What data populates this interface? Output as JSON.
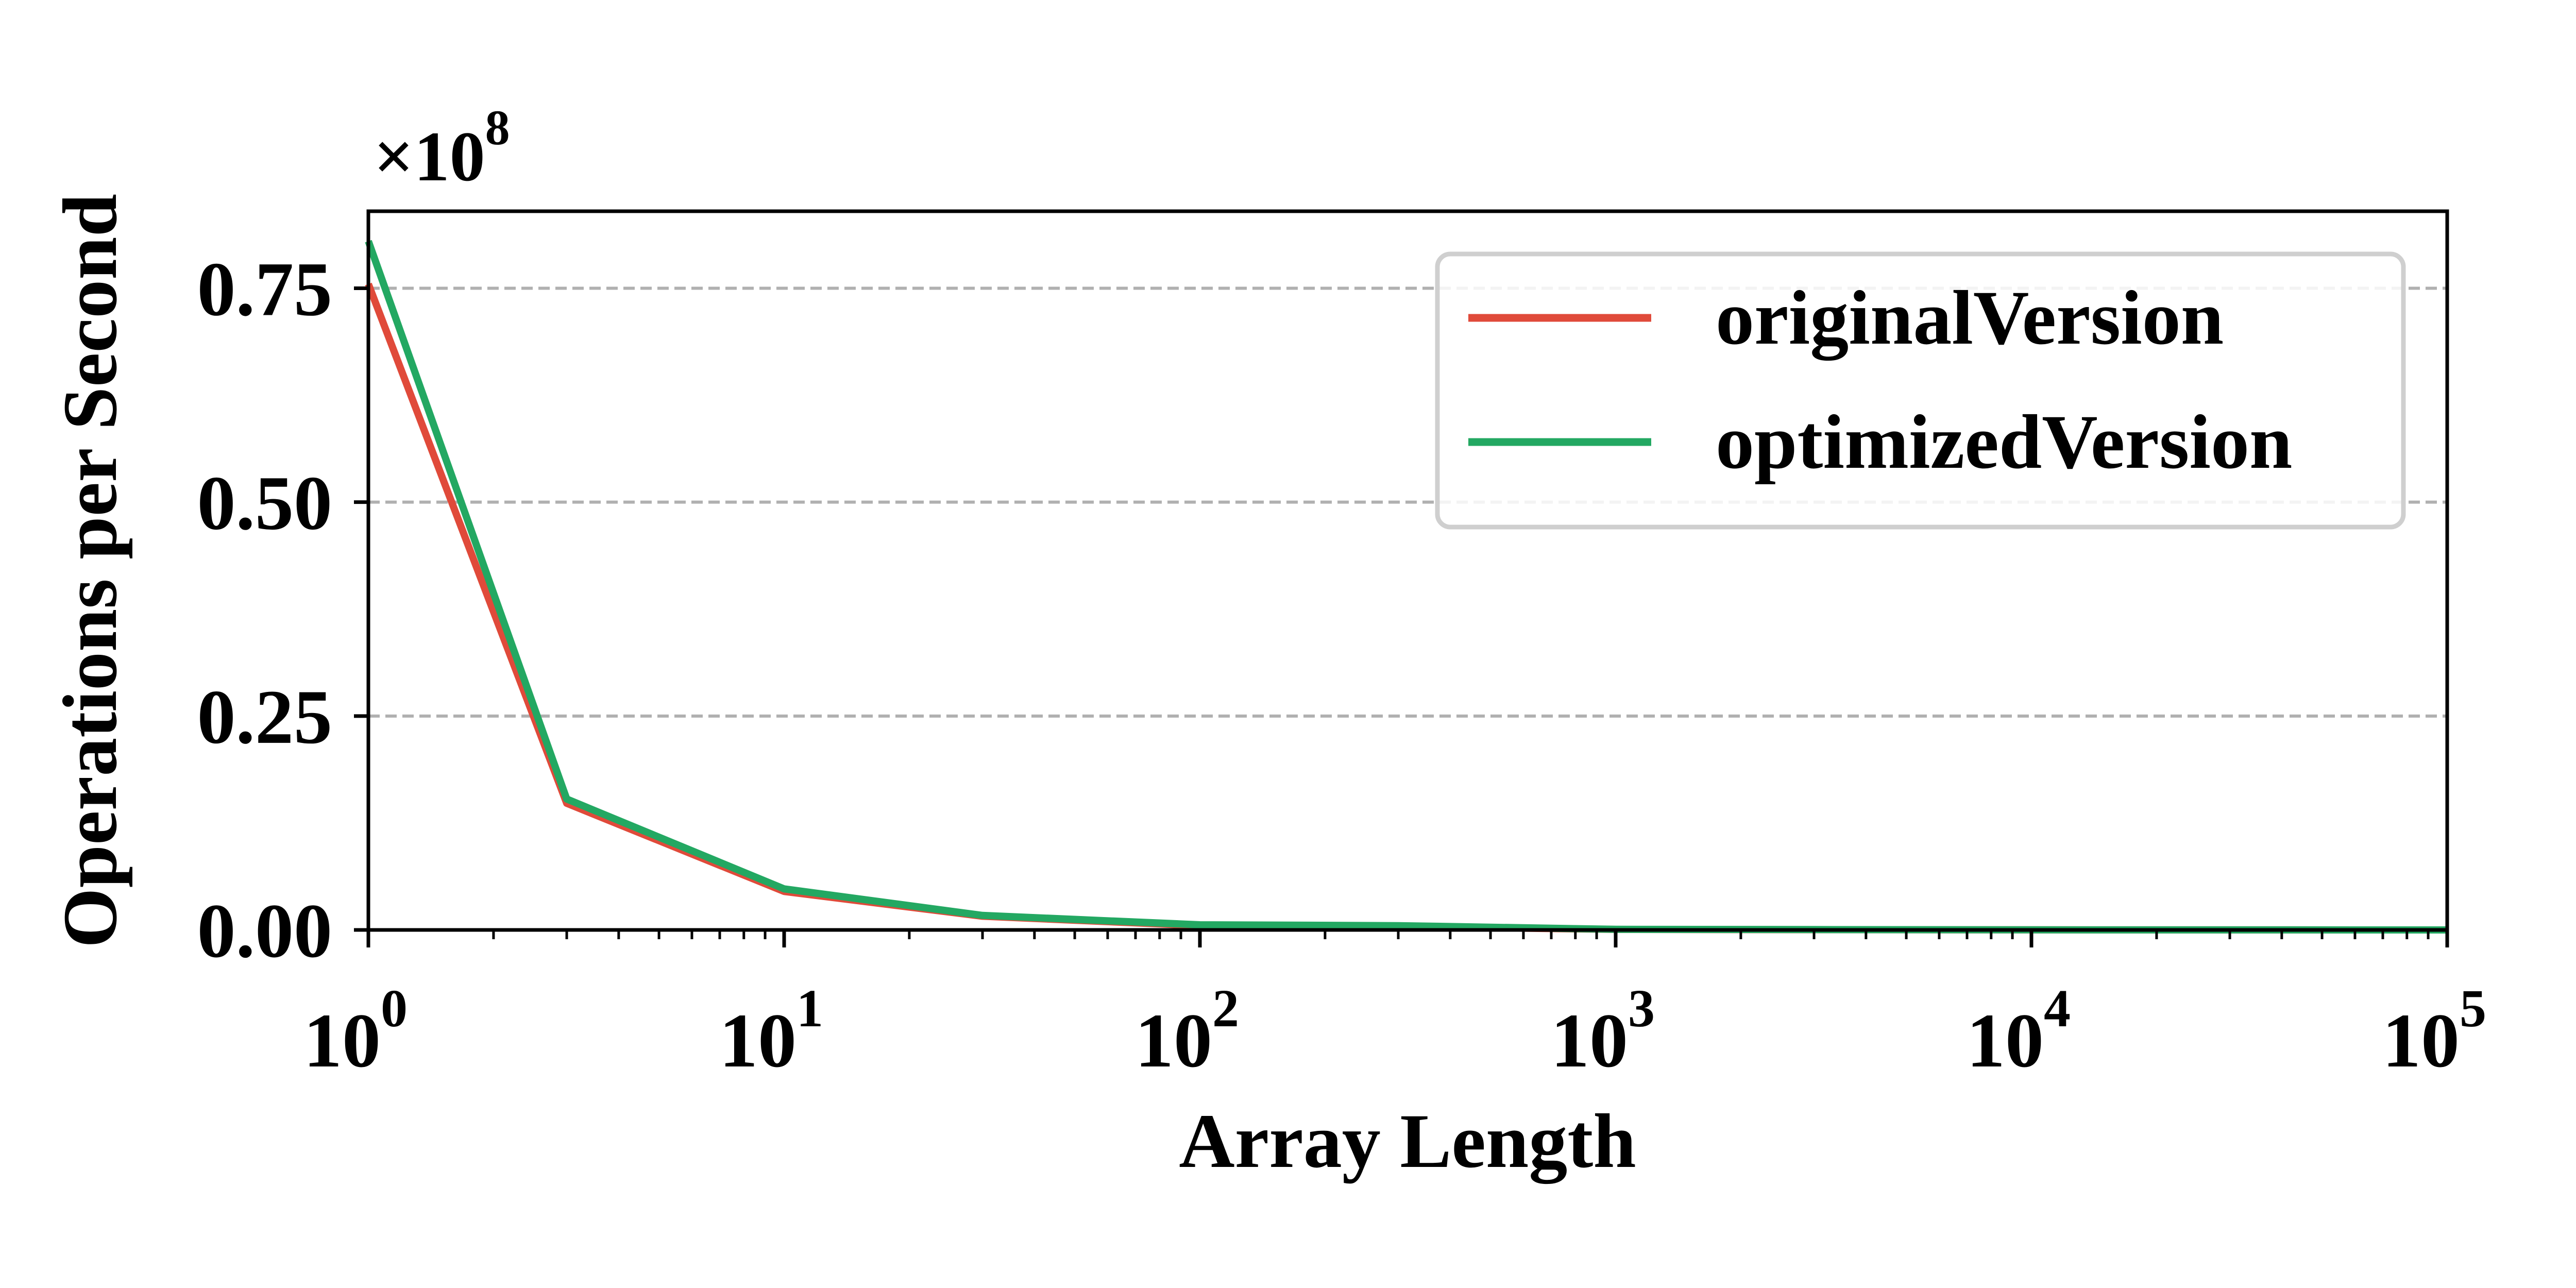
{
  "chart_data": {
    "type": "line",
    "title": "",
    "xlabel": "Array Length",
    "ylabel": "Operations per Second",
    "x_scale": "log",
    "xlim": [
      1,
      100000
    ],
    "ylim": [
      0,
      0.84
    ],
    "y_multiplier_label": "×10",
    "y_multiplier_exponent": "8",
    "x_ticks": [
      {
        "base": "10",
        "exp": "0",
        "value": 1
      },
      {
        "base": "10",
        "exp": "1",
        "value": 10
      },
      {
        "base": "10",
        "exp": "2",
        "value": 100
      },
      {
        "base": "10",
        "exp": "3",
        "value": 1000
      },
      {
        "base": "10",
        "exp": "4",
        "value": 10000
      },
      {
        "base": "10",
        "exp": "5",
        "value": 100000
      }
    ],
    "y_ticks": [
      {
        "label": "0.00",
        "value": 0
      },
      {
        "label": "0.25",
        "value": 0.25
      },
      {
        "label": "0.50",
        "value": 0.5
      },
      {
        "label": "0.75",
        "value": 0.75
      }
    ],
    "grid": "horizontal dashed",
    "legend_position": "top-right",
    "x": [
      1,
      3,
      10,
      30,
      100,
      300,
      1000,
      3000,
      10000,
      30000,
      100000
    ],
    "series": [
      {
        "name": "originalVersion",
        "color": "#e04a3a",
        "values": [
          0.755,
          0.148,
          0.045,
          0.016,
          0.005,
          0.004,
          0.0006,
          0.0003,
          0.0001,
          5e-05,
          2e-05
        ]
      },
      {
        "name": "optimizedVersion",
        "color": "#23a862",
        "values": [
          0.805,
          0.153,
          0.048,
          0.017,
          0.006,
          0.005,
          0.0007,
          0.0004,
          0.0001,
          5e-05,
          2e-05
        ]
      }
    ]
  }
}
